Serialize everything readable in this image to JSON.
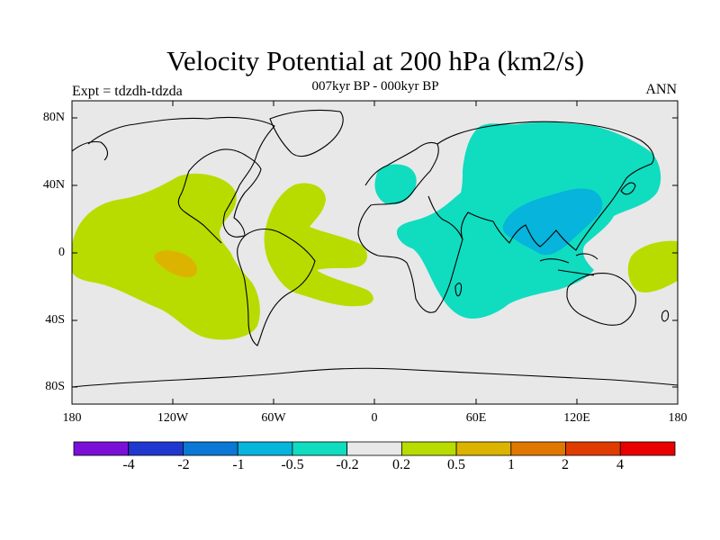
{
  "title": "Velocity Potential at 200 hPa (km2/s)",
  "subtitle": "007kyr BP - 000kyr BP",
  "left_label": "Expt = tdzdh-tdzda",
  "right_label": "ANN",
  "lat_labels": [
    "80N",
    "40N",
    "0",
    "40S",
    "80S"
  ],
  "lon_labels": [
    "180",
    "120W",
    "60W",
    "0",
    "60E",
    "120E",
    "180"
  ],
  "colorbar": {
    "colors": [
      "#7a10d8",
      "#2038d0",
      "#0a78d4",
      "#06b4dc",
      "#10dcc0",
      "#e8e8e8",
      "#b8dc00",
      "#dcb400",
      "#e07800",
      "#e03c00",
      "#e80000"
    ],
    "labels": [
      "-4",
      "-2",
      "-1",
      "-0.5",
      "-0.2",
      "0.2",
      "0.5",
      "1",
      "2",
      "4"
    ]
  }
}
